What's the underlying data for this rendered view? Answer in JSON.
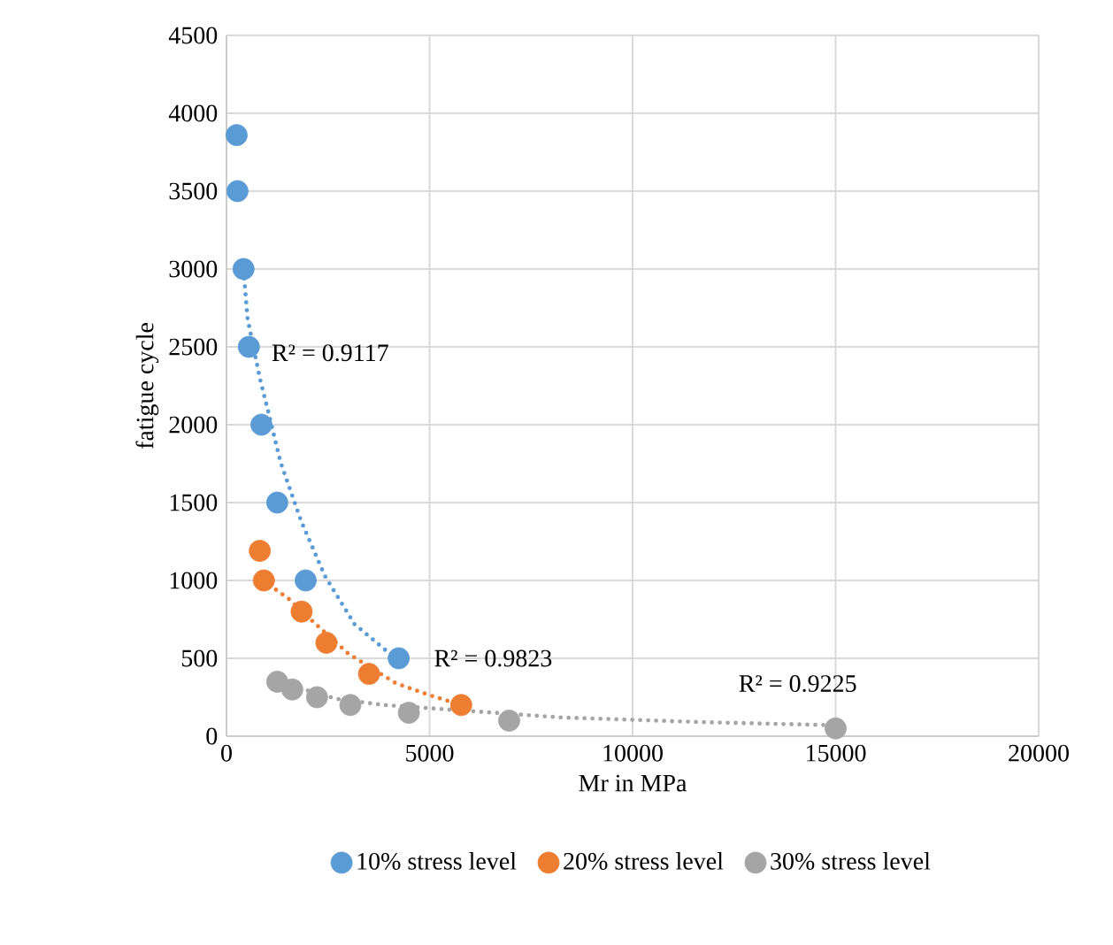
{
  "chart_data": {
    "type": "scatter",
    "xlabel": "Mr in MPa",
    "ylabel": "fatigue cycle",
    "xlim": [
      0,
      20000
    ],
    "ylim": [
      0,
      4500
    ],
    "xticks": [
      0,
      5000,
      10000,
      15000,
      20000
    ],
    "yticks": [
      0,
      500,
      1000,
      1500,
      2000,
      2500,
      3000,
      3500,
      4000,
      4500
    ],
    "grid": true,
    "legend": "bottom",
    "marker": "circle",
    "series": [
      {
        "name": "10% stress level",
        "color": "#5b9bd5",
        "x": [
          250,
          270,
          420,
          550,
          860,
          1250,
          1950,
          4240
        ],
        "values": [
          3860,
          3500,
          3000,
          2500,
          2000,
          1500,
          1000,
          500
        ]
      },
      {
        "name": "20% stress level",
        "color": "#ed7d31",
        "x": [
          820,
          920,
          1850,
          2460,
          3510,
          5780
        ],
        "values": [
          1190,
          1000,
          800,
          600,
          400,
          200
        ]
      },
      {
        "name": "30% stress level",
        "color": "#a5a5a5",
        "x": [
          1250,
          1620,
          2230,
          3050,
          4490,
          6960,
          15000
        ],
        "values": [
          350,
          300,
          250,
          200,
          150,
          100,
          50
        ]
      },
      {
        "type": "line",
        "color": "#5b9bd5",
        "line_style": "dotted",
        "marker": "none",
        "x": [
          420,
          520,
          820,
          1040,
          1330,
          1840,
          2420,
          3150,
          4020,
          4240
        ],
        "values": [
          2990,
          2680,
          2300,
          2070,
          1760,
          1380,
          1030,
          720,
          530,
          500
        ]
      },
      {
        "type": "line",
        "color": "#ed7d31",
        "line_style": "dotted",
        "marker": "none",
        "x": [
          900,
          1540,
          2280,
          3000,
          4170,
          5040,
          5780
        ],
        "values": [
          1000,
          880,
          700,
          530,
          340,
          260,
          200
        ]
      },
      {
        "type": "line",
        "color": "#a5a5a5",
        "line_style": "dotted",
        "marker": "none",
        "x": [
          1250,
          2710,
          3880,
          8250,
          11740,
          15000
        ],
        "values": [
          350,
          240,
          200,
          120,
          90,
          70
        ]
      }
    ],
    "annotations": [
      "R² = 0.9117",
      "R² = 0.9823",
      "R² = 0.9225"
    ]
  }
}
